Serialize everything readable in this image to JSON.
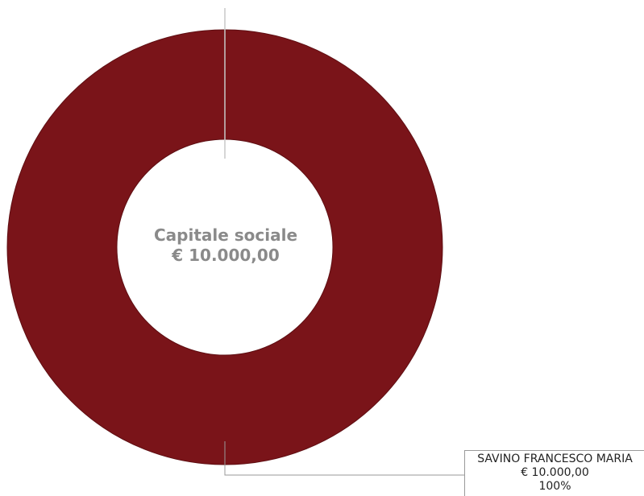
{
  "chart_data": {
    "type": "pie",
    "variant": "donut",
    "center_text": [
      "Capitale sociale",
      "€ 10.000,00"
    ],
    "slices": [
      {
        "label": "SAVINO FRANCESCO MARIA",
        "value": 10000.0,
        "value_text": "€ 10.000,00",
        "percent_text": "100%",
        "color": "#7a1419"
      }
    ],
    "legend": "bottom-right"
  },
  "colors": {
    "slice": "#7a1419",
    "slice_edge": "#5e0e12",
    "center_text": "#8a8a8a",
    "leader_line": "#9a9a9a"
  }
}
